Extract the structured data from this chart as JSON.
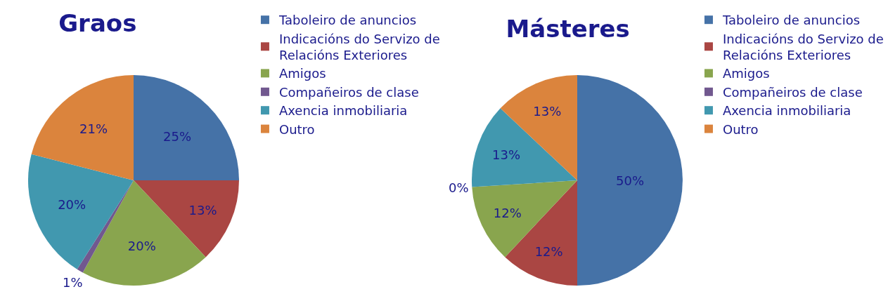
{
  "chart_data": [
    {
      "type": "pie",
      "title": "Graos",
      "categories": [
        "Taboleiro de anuncios",
        "Indicacións do Servizo de Relacións Exteriores",
        "Amigos",
        "Compañeiros de clase",
        "Axencia inmobiliaria",
        "Outro"
      ],
      "values": [
        25,
        13,
        20,
        1,
        20,
        21
      ],
      "value_labels": [
        "25%",
        "13%",
        "20%",
        "1%",
        "20%",
        "21%"
      ],
      "colors": [
        "#4572a7",
        "#aa4643",
        "#89a54e",
        "#71588f",
        "#4198af",
        "#db843d"
      ],
      "legend": "right"
    },
    {
      "type": "pie",
      "title": "Másteres",
      "categories": [
        "Taboleiro de anuncios",
        "Indicacións do Servizo de Relacións Exteriores",
        "Amigos",
        "Compañeiros de clase",
        "Axencia inmobiliaria",
        "Outro"
      ],
      "values": [
        50,
        12,
        12,
        0,
        13,
        13
      ],
      "value_labels": [
        "50%",
        "12%",
        "12%",
        "0%",
        "13%",
        "13%"
      ],
      "colors": [
        "#4572a7",
        "#aa4643",
        "#89a54e",
        "#71588f",
        "#4198af",
        "#db843d"
      ],
      "legend": "right"
    }
  ]
}
